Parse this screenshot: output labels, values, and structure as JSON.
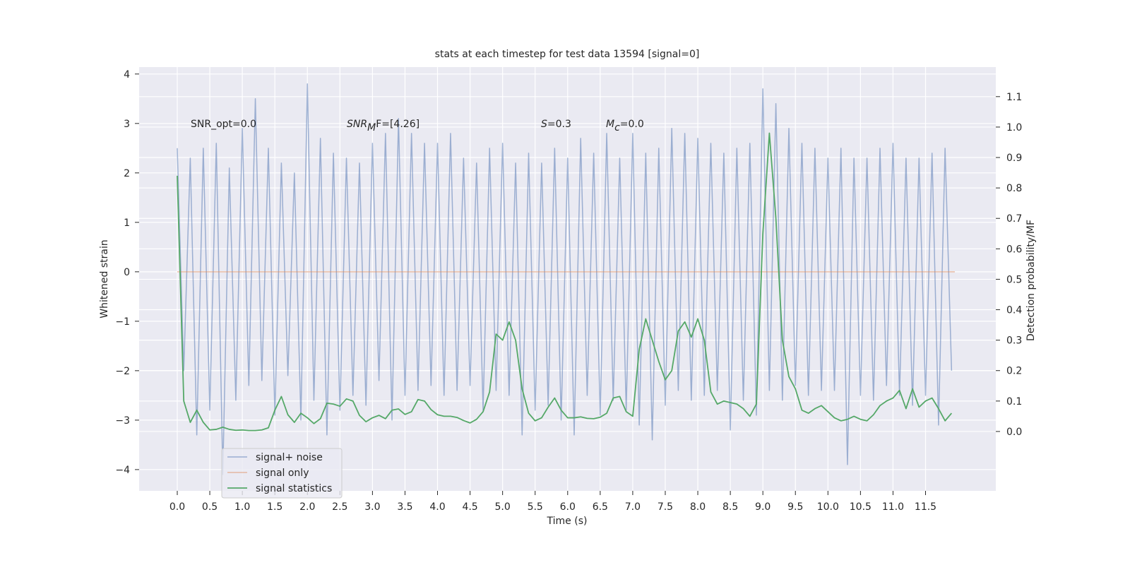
{
  "chart_data": {
    "type": "line",
    "title": "stats at each timestep for test data 13594 [signal=0]",
    "xlabel": "Time (s)",
    "ylabel": "Whitened strain",
    "y2label": "Detection probability/MF",
    "grid": true,
    "legend_loc": "lower left",
    "xlim": [
      -0.586,
      12.58
    ],
    "ylim": [
      -4.43,
      4.14
    ],
    "y2lim": [
      -0.195,
      1.197
    ],
    "xticks": [
      {
        "value": 0,
        "label": "0.0"
      },
      {
        "value": 0.5,
        "label": "0.5"
      },
      {
        "value": 1,
        "label": "1.0"
      },
      {
        "value": 1.5,
        "label": "1.5"
      },
      {
        "value": 2,
        "label": "2.0"
      },
      {
        "value": 2.5,
        "label": "2.5"
      },
      {
        "value": 3,
        "label": "3.0"
      },
      {
        "value": 3.5,
        "label": "3.5"
      },
      {
        "value": 4,
        "label": "4.0"
      },
      {
        "value": 4.5,
        "label": "4.5"
      },
      {
        "value": 5,
        "label": "5.0"
      },
      {
        "value": 5.5,
        "label": "5.5"
      },
      {
        "value": 6,
        "label": "6.0"
      },
      {
        "value": 6.5,
        "label": "6.5"
      },
      {
        "value": 7,
        "label": "7.0"
      },
      {
        "value": 7.5,
        "label": "7.5"
      },
      {
        "value": 8,
        "label": "8.0"
      },
      {
        "value": 8.5,
        "label": "8.5"
      },
      {
        "value": 9,
        "label": "9.0"
      },
      {
        "value": 9.5,
        "label": "9.5"
      },
      {
        "value": 10,
        "label": "10.0"
      },
      {
        "value": 10.5,
        "label": "10.5"
      },
      {
        "value": 11,
        "label": "11.0"
      },
      {
        "value": 11.5,
        "label": "11.5"
      }
    ],
    "yticks": [
      {
        "value": -4,
        "label": "−4"
      },
      {
        "value": -3,
        "label": "−3"
      },
      {
        "value": -2,
        "label": "−2"
      },
      {
        "value": -1,
        "label": "−1"
      },
      0,
      1,
      2,
      3,
      4
    ],
    "y2ticks": [
      {
        "value": 0,
        "label": "0.0"
      },
      {
        "value": 0.1,
        "label": "0.1"
      },
      {
        "value": 0.2,
        "label": "0.2"
      },
      {
        "value": 0.3,
        "label": "0.3"
      },
      {
        "value": 0.4,
        "label": "0.4"
      },
      {
        "value": 0.5,
        "label": "0.5"
      },
      {
        "value": 0.6,
        "label": "0.6"
      },
      {
        "value": 0.7,
        "label": "0.7"
      },
      {
        "value": 0.8,
        "label": "0.8"
      },
      {
        "value": 0.9,
        "label": "0.9"
      },
      {
        "value": 1,
        "label": "1.0"
      },
      {
        "value": 1.1,
        "label": "1.1"
      }
    ],
    "annotations": [
      {
        "base": "SNR_opt=0.0"
      },
      {
        "base": "SNR",
        "sub": "M",
        "rest": "F=[4.26]"
      },
      {
        "base": "S",
        "rest": "=0.3"
      },
      {
        "base": "M",
        "sub": "c",
        "rest": "=0.0"
      }
    ],
    "series": [
      {
        "name": "signal+ noise",
        "color": "#4c72b0",
        "x": [
          0,
          0.1,
          0.2,
          0.3,
          0.4,
          0.5,
          0.6,
          0.7,
          0.8,
          0.9,
          1,
          1.1,
          1.2,
          1.3,
          1.4,
          1.5,
          1.6,
          1.7,
          1.8,
          1.9,
          2,
          2.1,
          2.2,
          2.3,
          2.4,
          2.5,
          2.6,
          2.7,
          2.8,
          2.9,
          3,
          3.1,
          3.2,
          3.3,
          3.4,
          3.5,
          3.6,
          3.7,
          3.8,
          3.9,
          4,
          4.1,
          4.2,
          4.3,
          4.4,
          4.5,
          4.6,
          4.7,
          4.8,
          4.9,
          5,
          5.1,
          5.2,
          5.3,
          5.4,
          5.5,
          5.6,
          5.7,
          5.8,
          5.9,
          6,
          6.1,
          6.2,
          6.3,
          6.4,
          6.5,
          6.6,
          6.7,
          6.8,
          6.9,
          7,
          7.1,
          7.2,
          7.3,
          7.4,
          7.5,
          7.6,
          7.7,
          7.8,
          7.9,
          8,
          8.1,
          8.2,
          8.3,
          8.4,
          8.5,
          8.6,
          8.7,
          8.8,
          8.9,
          9,
          9.1,
          9.2,
          9.3,
          9.4,
          9.5,
          9.6,
          9.7,
          9.8,
          9.9,
          10,
          10.1,
          10.2,
          10.3,
          10.4,
          10.5,
          10.6,
          10.7,
          10.8,
          10.9,
          11,
          11.1,
          11.2,
          11.3,
          11.4,
          11.5,
          11.6,
          11.7,
          11.8,
          11.9
        ],
        "values": [
          2.5,
          -2.0,
          2.3,
          -3.3,
          2.5,
          -2.8,
          2.6,
          -4.1,
          2.1,
          -2.6,
          2.9,
          -2.3,
          3.5,
          -2.2,
          2.5,
          -2.9,
          2.2,
          -2.1,
          2.0,
          -3.0,
          3.8,
          -2.6,
          2.7,
          -3.3,
          2.4,
          -2.8,
          2.3,
          -2.5,
          2.2,
          -2.7,
          2.6,
          -2.2,
          2.8,
          -3.0,
          3.1,
          -2.5,
          2.8,
          -2.4,
          2.6,
          -2.3,
          2.6,
          -2.5,
          2.8,
          -2.4,
          2.3,
          -2.3,
          2.2,
          -2.8,
          2.5,
          -2.4,
          2.6,
          -2.5,
          2.2,
          -3.3,
          2.4,
          -2.8,
          2.2,
          -2.7,
          2.5,
          -3.0,
          2.3,
          -3.3,
          2.7,
          -2.5,
          2.4,
          -2.9,
          2.8,
          -2.6,
          2.3,
          -2.8,
          2.8,
          -3.1,
          2.4,
          -3.4,
          2.5,
          -2.7,
          2.9,
          -2.4,
          2.8,
          -2.6,
          2.7,
          -2.5,
          2.6,
          -2.4,
          2.4,
          -3.2,
          2.5,
          -2.6,
          2.6,
          -2.9,
          3.7,
          -2.4,
          3.4,
          -2.6,
          2.9,
          -2.3,
          2.6,
          -2.5,
          2.5,
          -2.4,
          2.3,
          -2.4,
          2.5,
          -3.9,
          2.3,
          -2.5,
          2.3,
          -2.6,
          2.5,
          -2.3,
          2.6,
          -2.5,
          2.3,
          -2.7,
          2.3,
          -2.5,
          2.4,
          -3.1,
          2.5,
          -2.0
        ]
      },
      {
        "name": "signal only",
        "color": "#dd8452",
        "x": [
          0,
          11.95
        ],
        "values": [
          0,
          0
        ]
      },
      {
        "name": "signal statistics",
        "color": "#55a868",
        "axis": "y2",
        "x": [
          0,
          0.1,
          0.2,
          0.3,
          0.4,
          0.5,
          0.6,
          0.7,
          0.8,
          0.9,
          1,
          1.1,
          1.2,
          1.3,
          1.4,
          1.5,
          1.6,
          1.7,
          1.8,
          1.9,
          2,
          2.1,
          2.2,
          2.3,
          2.4,
          2.5,
          2.6,
          2.7,
          2.8,
          2.9,
          3,
          3.1,
          3.2,
          3.3,
          3.4,
          3.5,
          3.6,
          3.7,
          3.8,
          3.9,
          4,
          4.1,
          4.2,
          4.3,
          4.4,
          4.5,
          4.6,
          4.7,
          4.8,
          4.9,
          5,
          5.1,
          5.2,
          5.3,
          5.4,
          5.5,
          5.6,
          5.7,
          5.8,
          5.9,
          6,
          6.1,
          6.2,
          6.3,
          6.4,
          6.5,
          6.6,
          6.7,
          6.8,
          6.9,
          7,
          7.1,
          7.2,
          7.3,
          7.4,
          7.5,
          7.6,
          7.7,
          7.8,
          7.9,
          8,
          8.1,
          8.2,
          8.3,
          8.4,
          8.5,
          8.6,
          8.7,
          8.8,
          8.9,
          9,
          9.1,
          9.2,
          9.3,
          9.4,
          9.5,
          9.6,
          9.7,
          9.8,
          9.9,
          10,
          10.1,
          10.2,
          10.3,
          10.4,
          10.5,
          10.6,
          10.7,
          10.8,
          10.9,
          11,
          11.1,
          11.2,
          11.3,
          11.4,
          11.5,
          11.6,
          11.7,
          11.8,
          11.9
        ],
        "values": [
          0.84,
          0.1,
          0.03,
          0.07,
          0.03,
          0.005,
          0.007,
          0.014,
          0.007,
          0.004,
          0.005,
          0.003,
          0.003,
          0.005,
          0.012,
          0.07,
          0.115,
          0.055,
          0.03,
          0.06,
          0.045,
          0.026,
          0.042,
          0.093,
          0.09,
          0.083,
          0.107,
          0.1,
          0.053,
          0.032,
          0.045,
          0.053,
          0.042,
          0.07,
          0.074,
          0.056,
          0.065,
          0.105,
          0.1,
          0.072,
          0.055,
          0.05,
          0.05,
          0.046,
          0.036,
          0.028,
          0.04,
          0.065,
          0.13,
          0.32,
          0.3,
          0.36,
          0.3,
          0.14,
          0.06,
          0.035,
          0.045,
          0.08,
          0.11,
          0.07,
          0.045,
          0.045,
          0.048,
          0.043,
          0.042,
          0.047,
          0.06,
          0.11,
          0.115,
          0.065,
          0.05,
          0.27,
          0.37,
          0.3,
          0.23,
          0.17,
          0.2,
          0.33,
          0.36,
          0.31,
          0.37,
          0.3,
          0.13,
          0.09,
          0.1,
          0.095,
          0.09,
          0.075,
          0.05,
          0.09,
          0.65,
          0.98,
          0.7,
          0.3,
          0.18,
          0.14,
          0.07,
          0.06,
          0.075,
          0.085,
          0.065,
          0.045,
          0.035,
          0.04,
          0.05,
          0.04,
          0.035,
          0.055,
          0.085,
          0.1,
          0.11,
          0.135,
          0.075,
          0.14,
          0.08,
          0.1,
          0.11,
          0.075,
          0.035,
          0.06
        ]
      }
    ]
  }
}
